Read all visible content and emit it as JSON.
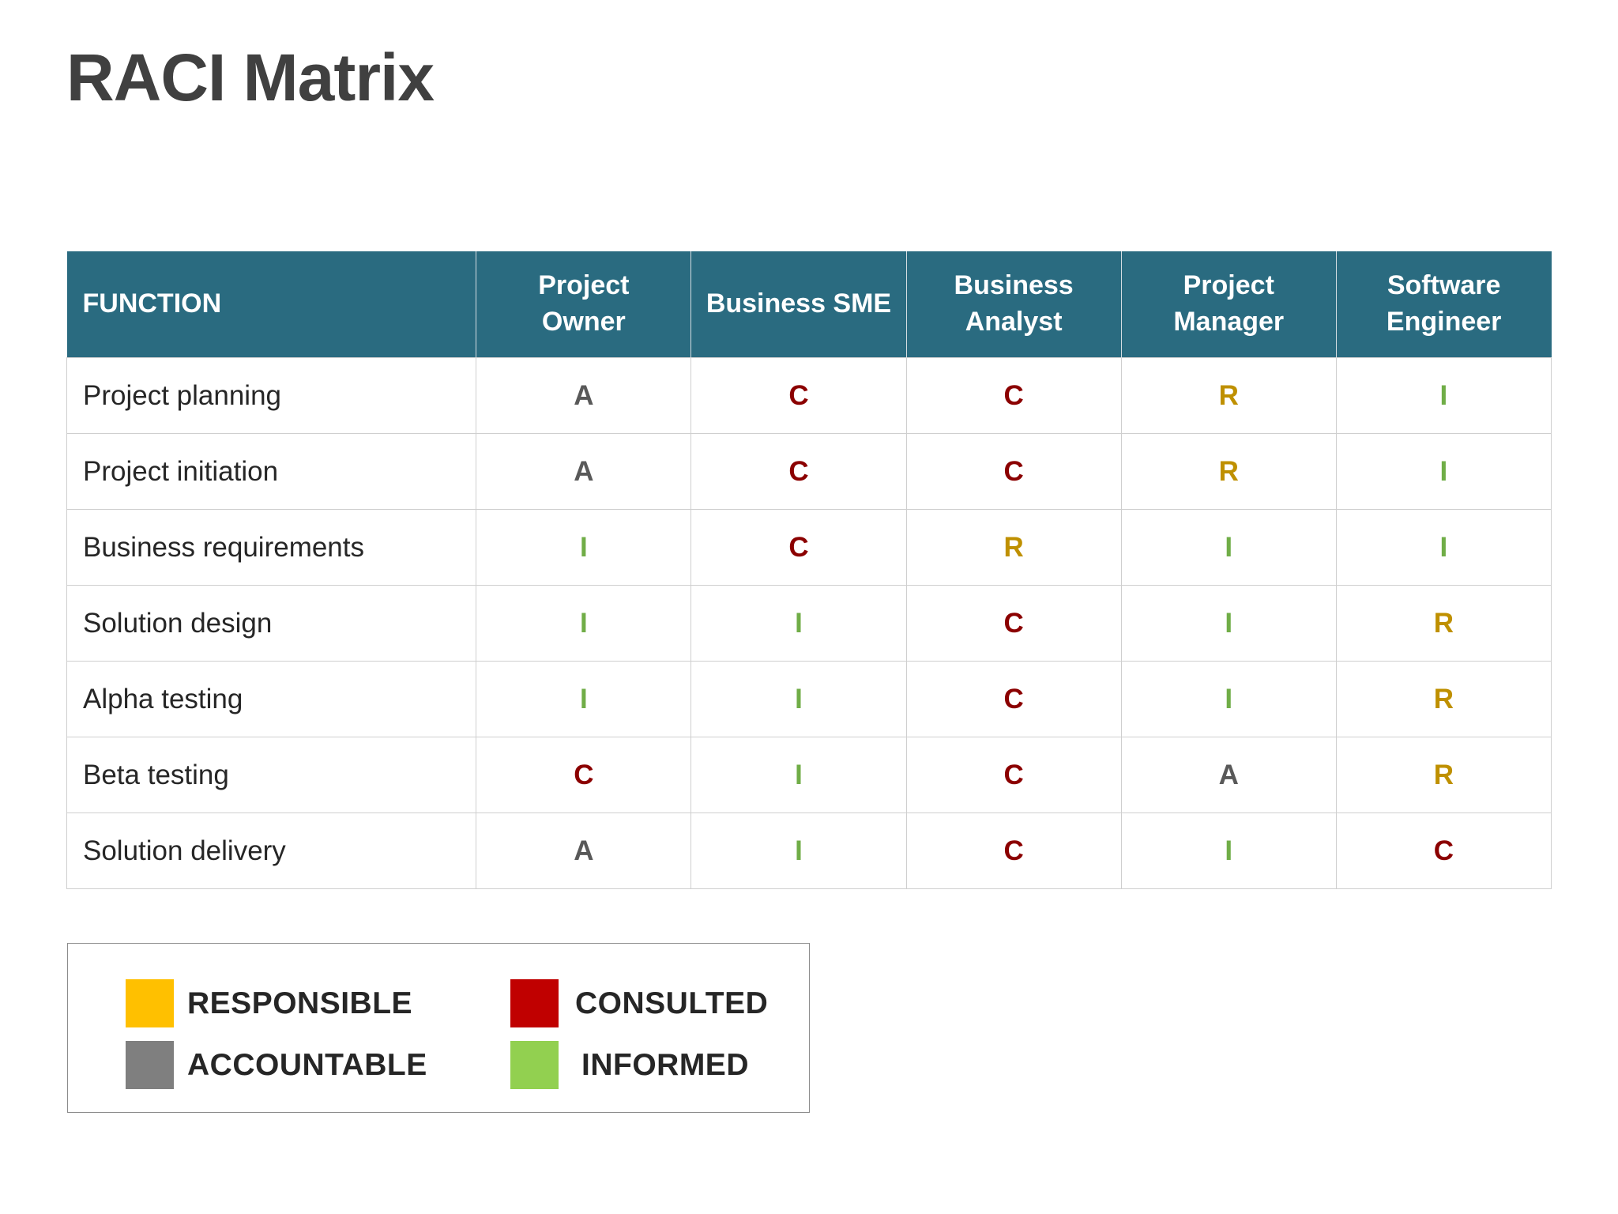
{
  "title": "RACI Matrix",
  "table": {
    "header_function": "FUNCTION",
    "roles": [
      "Project\nOwner",
      "Business SME",
      "Business\nAnalyst",
      "Project\nManager",
      "Software\nEngineer"
    ],
    "rows": [
      {
        "function": "Project planning",
        "codes": [
          "A",
          "C",
          "C",
          "R",
          "I"
        ]
      },
      {
        "function": "Project initiation",
        "codes": [
          "A",
          "C",
          "C",
          "R",
          "I"
        ]
      },
      {
        "function": "Business requirements",
        "codes": [
          "I",
          "C",
          "R",
          "I",
          "I"
        ]
      },
      {
        "function": "Solution design",
        "codes": [
          "I",
          "I",
          "C",
          "I",
          "R"
        ]
      },
      {
        "function": "Alpha testing",
        "codes": [
          "I",
          "I",
          "C",
          "I",
          "R"
        ]
      },
      {
        "function": "Beta testing",
        "codes": [
          "C",
          "I",
          "C",
          "A",
          "R"
        ]
      },
      {
        "function": "Solution delivery",
        "codes": [
          "A",
          "I",
          "C",
          "I",
          "C"
        ]
      }
    ]
  },
  "legend": {
    "responsible": {
      "label": "RESPONSIBLE",
      "color": "#ffc000"
    },
    "accountable": {
      "label": "ACCOUNTABLE",
      "color": "#7f7f7f"
    },
    "consulted": {
      "label": "CONSULTED",
      "color": "#c00000"
    },
    "informed": {
      "label": "INFORMED",
      "color": "#92d050"
    }
  }
}
